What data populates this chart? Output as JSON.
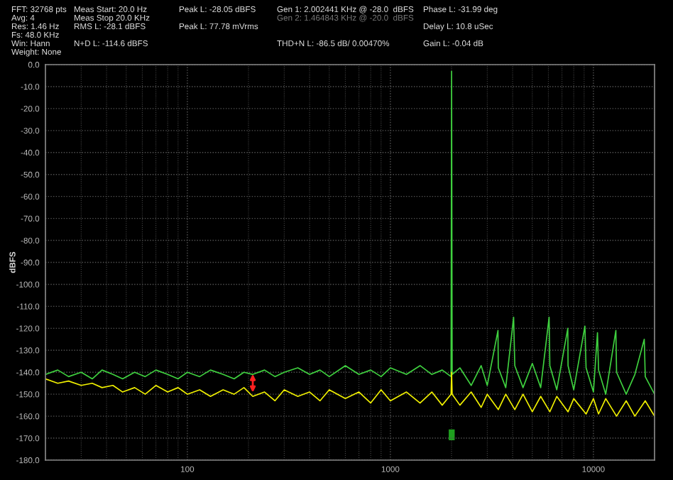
{
  "chart_data": {
    "type": "line",
    "ylabel": "dBFS",
    "annotations": [
      "FFT: 32768 pts",
      "Avg: 4",
      "Res: 1.46 Hz",
      "Fs: 48.0 KHz",
      "Win: Hann",
      "Weight: None",
      "Meas Start: 20.0 Hz",
      "Meas Stop 20.0 KHz",
      "RMS L: -28.1 dBFS",
      "N+D L: -114.6 dBFS",
      "Peak L: -28.05 dBFS",
      "Peak L: 77.78 mVrms",
      "Gen 1: 2.002441 KHz @ -28.0  dBFS",
      "Gen 2: 1.464843 KHz @ -20.0  dBFS",
      "THD+N L: -86.5 dB/ 0.00470%",
      "Phase L: -31.99 deg",
      "Delay L: 10.8 uSec",
      "Gain L: -0.04 dB"
    ],
    "log": "x",
    "xlim": [
      20,
      20000
    ],
    "xticks": [
      100,
      1000,
      10000
    ],
    "ylim": [
      -180,
      0
    ],
    "yticks": [
      {
        "value": 0,
        "label": "0.0"
      },
      {
        "value": -10,
        "label": "-10.0"
      },
      {
        "value": -20,
        "label": "-20.0"
      },
      {
        "value": -30,
        "label": "-30.0"
      },
      {
        "value": -40,
        "label": "-40.0"
      },
      {
        "value": -50,
        "label": "-50.0"
      },
      {
        "value": -60,
        "label": "-60.0"
      },
      {
        "value": -70,
        "label": "-70.0"
      },
      {
        "value": -80,
        "label": "-80.0"
      },
      {
        "value": -90,
        "label": "-90.0"
      },
      {
        "value": -100,
        "label": "-100.0"
      },
      {
        "value": -110,
        "label": "-110.0"
      },
      {
        "value": -120,
        "label": "-120.0"
      },
      {
        "value": -130,
        "label": "-130.0"
      },
      {
        "value": -140,
        "label": "-140.0"
      },
      {
        "value": -150,
        "label": "-150.0"
      },
      {
        "value": -160,
        "label": "-160.0"
      },
      {
        "value": -170,
        "label": "-170.0"
      },
      {
        "value": -180,
        "label": "-180.0"
      }
    ],
    "grid": true,
    "line_style": "solid",
    "marker": "none",
    "series": [
      {
        "color": "#3fd13f",
        "x": [
          20,
          23,
          26,
          30,
          34,
          38,
          43,
          48,
          55,
          62,
          70,
          80,
          90,
          100,
          115,
          130,
          150,
          170,
          190,
          210,
          240,
          270,
          300,
          350,
          400,
          450,
          500,
          600,
          700,
          800,
          900,
          1000,
          1200,
          1400,
          1600,
          1800,
          1990,
          2002,
          2015,
          2200,
          2500,
          2800,
          3000,
          3388,
          3400,
          3700,
          4045,
          4100,
          4500,
          5000,
          5500,
          6050,
          6100,
          6600,
          7480,
          7500,
          8000,
          9080,
          9200,
          10000,
          10470,
          10600,
          11500,
          12900,
          13000,
          14500,
          16000,
          17800,
          18000,
          20000
        ],
        "values": [
          -141,
          -139,
          -142,
          -140,
          -143,
          -139,
          -141,
          -143,
          -140,
          -142,
          -139,
          -141,
          -143,
          -140,
          -142,
          -139,
          -141,
          -143,
          -140,
          -141,
          -139,
          -142,
          -140,
          -138,
          -141,
          -139,
          -142,
          -137,
          -141,
          -139,
          -142,
          -138,
          -141,
          -137,
          -141,
          -139,
          -142,
          -3,
          -141,
          -138,
          -146,
          -137,
          -146,
          -121,
          -138,
          -147,
          -115,
          -137,
          -147,
          -136,
          -147,
          -115,
          -137,
          -148,
          -120,
          -137,
          -148,
          -119,
          -138,
          -149,
          -122,
          -139,
          -150,
          -121,
          -140,
          -150,
          -141,
          -125,
          -142,
          -150
        ]
      },
      {
        "color": "#f0f000",
        "x": [
          20,
          23,
          26,
          30,
          34,
          38,
          43,
          48,
          55,
          62,
          70,
          80,
          90,
          100,
          115,
          130,
          150,
          170,
          190,
          210,
          240,
          270,
          300,
          350,
          400,
          450,
          500,
          600,
          700,
          800,
          900,
          1000,
          1200,
          1400,
          1600,
          1800,
          1990,
          2002,
          2015,
          2200,
          2500,
          2800,
          3000,
          3400,
          3700,
          4100,
          4500,
          5000,
          5500,
          6100,
          6600,
          7500,
          8000,
          9200,
          10000,
          10600,
          11500,
          13000,
          14500,
          16000,
          18000,
          20000
        ],
        "values": [
          -143,
          -145,
          -144,
          -146,
          -145,
          -147,
          -146,
          -149,
          -147,
          -150,
          -146,
          -149,
          -147,
          -150,
          -148,
          -151,
          -148,
          -150,
          -147,
          -151,
          -149,
          -153,
          -148,
          -151,
          -149,
          -153,
          -148,
          -152,
          -149,
          -154,
          -148,
          -153,
          -149,
          -154,
          -149,
          -155,
          -150,
          -140,
          -150,
          -155,
          -149,
          -156,
          -150,
          -157,
          -150,
          -157,
          -150,
          -158,
          -151,
          -158,
          -151,
          -158,
          -152,
          -159,
          -152,
          -159,
          -152,
          -160,
          -153,
          -160,
          -153,
          -160
        ]
      }
    ]
  }
}
